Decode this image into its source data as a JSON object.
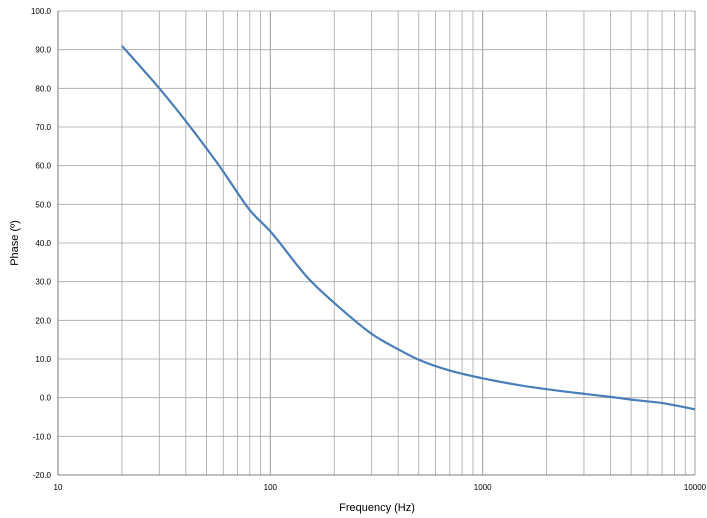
{
  "chart_data": {
    "type": "line",
    "title": "",
    "xlabel": "Frequency (Hz)",
    "ylabel": "Phase (º)",
    "xscale": "log",
    "xlim": [
      10,
      10000
    ],
    "ylim": [
      -20,
      100
    ],
    "grid": true,
    "legend": "none",
    "x_tick_labels": [
      "10",
      "100",
      "1000",
      "10000"
    ],
    "y_tick_labels": [
      "100.0",
      "90.0",
      "80.0",
      "70.0",
      "60.0",
      "50.0",
      "40.0",
      "30.0",
      "20.0",
      "10.0",
      "0.0",
      "-10.0",
      "-20.0"
    ],
    "series": [
      {
        "color": "#4a7ebb",
        "x": [
          20,
          30,
          40,
          50,
          60,
          70,
          80,
          100,
          150,
          200,
          300,
          400,
          500,
          700,
          1000,
          1500,
          2000,
          3000,
          4000,
          5000,
          7000,
          10000
        ],
        "y": [
          91,
          80,
          71.5,
          64.5,
          58.5,
          53,
          48.5,
          43,
          31,
          24.5,
          16.5,
          12.5,
          9.8,
          7,
          5,
          3.2,
          2.2,
          1.0,
          0.2,
          -0.5,
          -1.4,
          -3
        ]
      }
    ]
  },
  "colors": {
    "grid": "#a6a6a6",
    "axis": "#808080",
    "line": "#4a7ebb"
  }
}
